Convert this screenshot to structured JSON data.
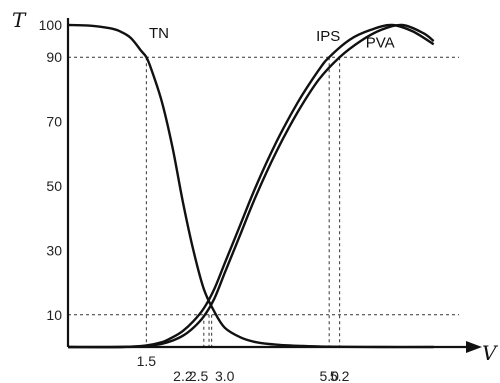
{
  "chart_data": {
    "type": "line",
    "xlabel": "V",
    "ylabel": "T",
    "xlim": [
      0,
      7.6
    ],
    "ylim": [
      0,
      100
    ],
    "grid": false,
    "y_ticks": [
      "10",
      "30",
      "50",
      "70",
      "90",
      "100"
    ],
    "x_ticks": [
      {
        "value": 1.5,
        "label": "1.5",
        "row": 0
      },
      {
        "value": 2.2,
        "label": "2.2",
        "row": 1
      },
      {
        "value": 2.5,
        "label": "2.5",
        "row": 1
      },
      {
        "value": 3.0,
        "label": "3.0",
        "row": 1
      },
      {
        "value": 5.0,
        "label": "5.0",
        "row": 1
      },
      {
        "value": 5.2,
        "label": "5.2",
        "row": 1
      }
    ],
    "reference_lines": {
      "horizontal": [
        10,
        90
      ],
      "vertical": [
        1.5,
        2.6,
        2.7,
        2.75,
        5.0,
        5.2
      ]
    },
    "series": [
      {
        "name": "TN",
        "x": [
          0,
          0.4,
          0.8,
          1.0,
          1.2,
          1.4,
          1.5,
          1.6,
          1.8,
          2.0,
          2.2,
          2.4,
          2.6,
          2.8,
          3.0,
          3.3,
          3.6,
          4.0,
          4.5,
          5.0,
          6.0,
          7.0
        ],
        "y": [
          100,
          99.8,
          99,
          98,
          96,
          92,
          90,
          86,
          76,
          62,
          45,
          30,
          18,
          11,
          6,
          3,
          1.5,
          0.7,
          0.3,
          0.1,
          0,
          0
        ]
      },
      {
        "name": "IPS",
        "x": [
          0,
          1.0,
          1.5,
          1.8,
          2.0,
          2.2,
          2.4,
          2.6,
          2.8,
          3.0,
          3.3,
          3.6,
          4.0,
          4.4,
          4.8,
          5.0,
          5.4,
          5.8,
          6.2,
          6.6,
          7.0
        ],
        "y": [
          0,
          0,
          0.5,
          1.5,
          3,
          5,
          8,
          12,
          18,
          26,
          38,
          50,
          64,
          76,
          86,
          90,
          95.5,
          98.5,
          100,
          98,
          94
        ]
      },
      {
        "name": "PVA",
        "x": [
          0,
          1.0,
          1.5,
          1.8,
          2.0,
          2.2,
          2.4,
          2.6,
          2.8,
          3.0,
          3.3,
          3.6,
          4.0,
          4.4,
          4.8,
          5.2,
          5.6,
          6.0,
          6.4,
          6.8,
          7.0
        ],
        "y": [
          0,
          0,
          0.3,
          1,
          2,
          3.5,
          6,
          9.5,
          15,
          23,
          35,
          47,
          61,
          73,
          83,
          90,
          95,
          98.5,
          100,
          97.5,
          95
        ]
      }
    ]
  }
}
